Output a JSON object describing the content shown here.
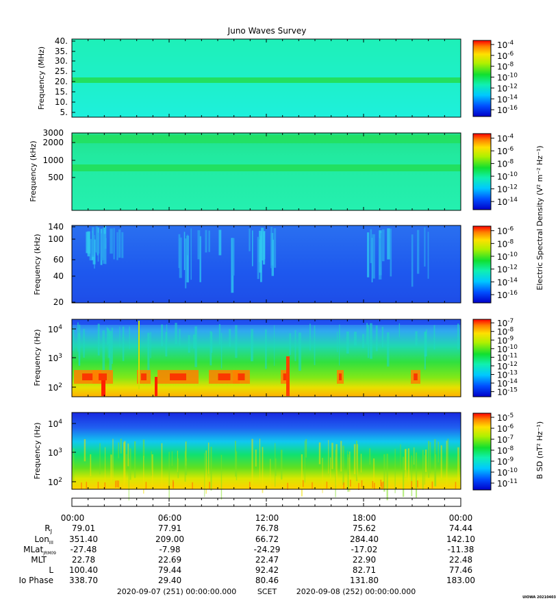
{
  "title": "Juno Waves Survey",
  "footer": {
    "start": "2020-09-07 (251) 00:00:00.000",
    "mid": "SCET",
    "end": "2020-09-08 (252) 00:00:00.000",
    "stamp": "UIOWA 20210403"
  },
  "colorbar_labels": {
    "efield": "Electric Spectral Density (V² m⁻² Hz⁻¹)",
    "bfield": "B SD (nT² Hz⁻¹)"
  },
  "colors": {
    "background_hf": "#1ef0c0",
    "background_lfh": "#1ef0a0",
    "background_vlf": "#1e5ef0",
    "band_line": "#22e060"
  },
  "ephemeris": {
    "times": [
      "00:00",
      "06:00",
      "12:00",
      "18:00",
      "00:00"
    ],
    "rows": [
      {
        "label": "RJ",
        "values": [
          "79.01",
          "77.91",
          "76.78",
          "75.62",
          "74.44"
        ]
      },
      {
        "label": "LonIII",
        "values": [
          "351.40",
          "209.00",
          "66.72",
          "284.40",
          "142.10"
        ]
      },
      {
        "label": "MLatJRM09",
        "values": [
          "-27.48",
          "-7.98",
          "-24.29",
          "-17.02",
          "-11.38"
        ]
      },
      {
        "label": "MLT",
        "values": [
          "22.78",
          "22.69",
          "22.47",
          "22.90",
          "22.48"
        ]
      },
      {
        "label": "L",
        "values": [
          "100.40",
          "79.44",
          "92.42",
          "82.71",
          "77.46"
        ]
      },
      {
        "label": "Io Phase",
        "values": [
          "338.70",
          "29.40",
          "80.46",
          "131.80",
          "183.00"
        ]
      }
    ]
  },
  "chart_data": [
    {
      "type": "heatmap",
      "ylabel": "Frequency (MHz)",
      "yticks": [
        "40.",
        "35.",
        "30.",
        "25.",
        "20.",
        "15.",
        "10.",
        "5."
      ],
      "ylim": [
        3,
        41
      ],
      "xlim": [
        "00:00",
        "00:00"
      ],
      "colorbar": {
        "ticks": [
          "10-4",
          "10-6",
          "10-8",
          "10-10",
          "10-12",
          "10-14",
          "10-16"
        ]
      }
    },
    {
      "type": "heatmap",
      "ylabel": "Frequency (kHz)",
      "yticks": [
        "3000",
        "2000",
        "1000",
        "500"
      ],
      "colorbar": {
        "ticks": [
          "10-4",
          "10-6",
          "10-8",
          "10-10",
          "10-12",
          "10-14"
        ]
      }
    },
    {
      "type": "heatmap",
      "ylabel": "Frequency (kHz)",
      "yticks": [
        "140",
        "100",
        "60",
        "40",
        "20"
      ],
      "colorbar": {
        "ticks": [
          "10-6",
          "10-8",
          "10-10",
          "10-12",
          "10-14",
          "10-16"
        ]
      }
    },
    {
      "type": "heatmap",
      "ylabel": "Frequency (Hz)",
      "yticks": [
        "10^4",
        "10^3",
        "10^2"
      ],
      "colorbar": {
        "ticks": [
          "10-7",
          "10-8",
          "10-9",
          "10-10",
          "10-11",
          "10-12",
          "10-13",
          "10-14",
          "10-15"
        ]
      }
    },
    {
      "type": "heatmap",
      "ylabel": "Frequency (Hz)",
      "yticks": [
        "10^4",
        "10^3",
        "10^2"
      ],
      "colorbar": {
        "ticks": [
          "10-5",
          "10-6",
          "10-7",
          "10-8",
          "10-9",
          "10-10",
          "10-11"
        ]
      }
    }
  ]
}
